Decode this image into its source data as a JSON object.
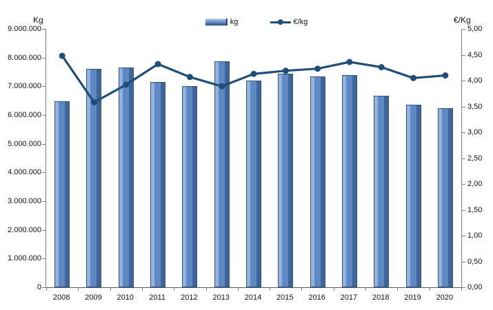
{
  "chart_data": {
    "type": "combo-bar-line",
    "categories": [
      "2008",
      "2009",
      "2010",
      "2011",
      "2012",
      "2013",
      "2014",
      "2015",
      "2016",
      "2017",
      "2018",
      "2019",
      "2020"
    ],
    "series": [
      {
        "name": "kg",
        "type": "bar",
        "axis": "left",
        "values": [
          6480000,
          7600000,
          7650000,
          7150000,
          7000000,
          7880000,
          7200000,
          7430000,
          7350000,
          7390000,
          6680000,
          6350000,
          6230000
        ]
      },
      {
        "name": "€/kg",
        "type": "line",
        "axis": "right",
        "values": [
          4.48,
          3.58,
          3.92,
          4.32,
          4.07,
          3.89,
          4.13,
          4.19,
          4.23,
          4.36,
          4.26,
          4.05,
          4.1
        ]
      }
    ],
    "left_axis": {
      "title": "Kg",
      "min": 0,
      "max": 9000000,
      "step": 1000000,
      "tick_labels": [
        "9.000.000",
        "8.000.000",
        "7.000.000",
        "6.000.000",
        "5.000.000",
        "4.000.000",
        "3.000.000",
        "2.000.000",
        "1.000.000",
        "0"
      ]
    },
    "right_axis": {
      "title": "€/Kg",
      "min": 0,
      "max": 5,
      "step": 0.5,
      "tick_labels": [
        "5,00",
        "4,50",
        "4,00",
        "3,50",
        "3,00",
        "2,50",
        "2,00",
        "1,50",
        "1,00",
        "0,50",
        "0,00"
      ]
    },
    "legend": {
      "position": "top-center",
      "items": [
        "kg",
        "€/kg"
      ]
    },
    "grid": false,
    "colors": {
      "bar_fill": "#5e89c5",
      "bar_highlight": "#93b3de",
      "bar_shadow": "#406598",
      "bar_border": "#2f547f",
      "line": "#1f4e79",
      "axis_line": "#7f7f7f",
      "text": "#111111",
      "background": "#ffffff"
    }
  }
}
